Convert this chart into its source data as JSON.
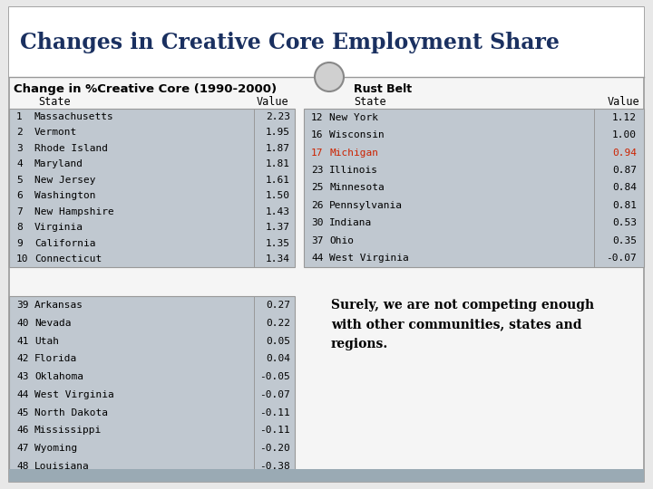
{
  "title": "Changes in Creative Core Employment Share",
  "subtitle": "Change in %Creative Core (1990-2000)",
  "bg_outer": "#e8e8e8",
  "bg_slide": "#f5f5f5",
  "bg_white": "#ffffff",
  "bg_table": "#c0c8d0",
  "bg_bottom_bar": "#9aaab4",
  "border_color": "#999999",
  "title_color": "#1a3060",
  "text_color": "#000000",
  "subtitle_color": "#000000",
  "highlight_color": "#cc2200",
  "circle_face": "#d0d0d0",
  "circle_edge": "#888888",
  "left_top_rows": [
    [
      1,
      "Massachusetts",
      2.23
    ],
    [
      2,
      "Vermont",
      1.95
    ],
    [
      3,
      "Rhode Island",
      1.87
    ],
    [
      4,
      "Maryland",
      1.81
    ],
    [
      5,
      "New Jersey",
      1.61
    ],
    [
      6,
      "Washington",
      1.5
    ],
    [
      7,
      "New Hampshire",
      1.43
    ],
    [
      8,
      "Virginia",
      1.37
    ],
    [
      9,
      "California",
      1.35
    ],
    [
      10,
      "Connecticut",
      1.34
    ]
  ],
  "left_bot_rows": [
    [
      39,
      "Arkansas",
      0.27
    ],
    [
      40,
      "Nevada",
      0.22
    ],
    [
      41,
      "Utah",
      0.05
    ],
    [
      42,
      "Florida",
      0.04
    ],
    [
      43,
      "Oklahoma",
      -0.05
    ],
    [
      44,
      "West Virginia",
      -0.07
    ],
    [
      45,
      "North Dakota",
      -0.11
    ],
    [
      46,
      "Mississippi",
      -0.11
    ],
    [
      47,
      "Wyoming",
      -0.2
    ],
    [
      48,
      "Louisiana",
      -0.38
    ]
  ],
  "rust_rows": [
    [
      12,
      "New York",
      1.12,
      false
    ],
    [
      16,
      "Wisconsin",
      1.0,
      false
    ],
    [
      17,
      "Michigan",
      0.94,
      true
    ],
    [
      23,
      "Illinois",
      0.87,
      false
    ],
    [
      25,
      "Minnesota",
      0.84,
      false
    ],
    [
      26,
      "Pennsylvania",
      0.81,
      false
    ],
    [
      30,
      "Indiana",
      0.53,
      false
    ],
    [
      37,
      "Ohio",
      0.35,
      false
    ],
    [
      44,
      "West Virginia",
      -0.07,
      false
    ]
  ],
  "annotation": "Surely, we are not competing enough\nwith other communities, states and\nregions."
}
